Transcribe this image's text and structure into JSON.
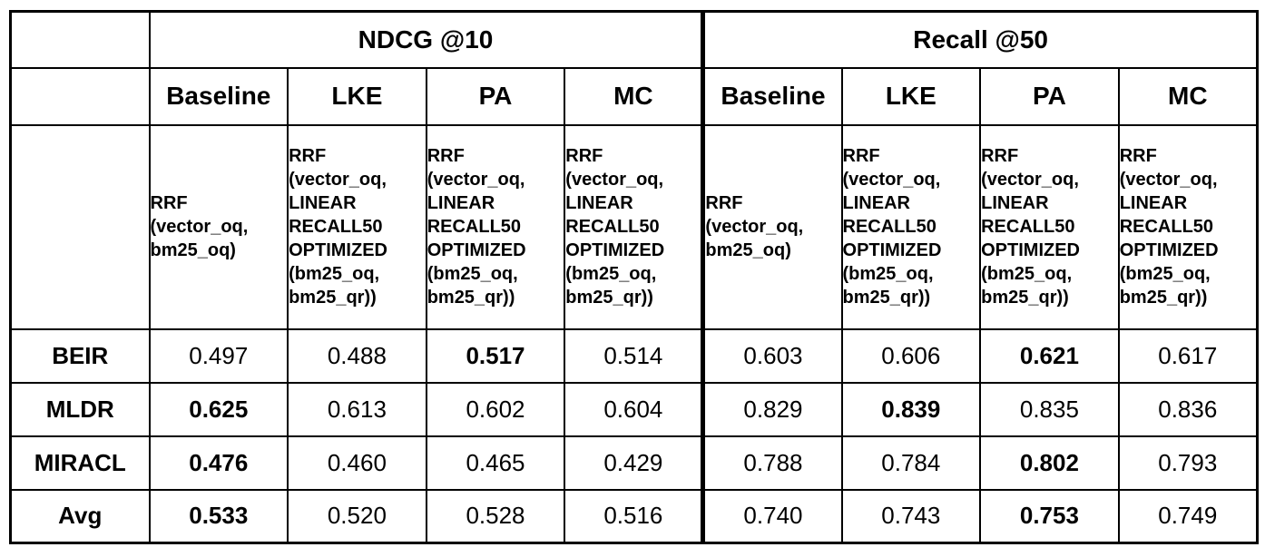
{
  "chart_data": {
    "type": "table",
    "title": "",
    "column_groups": [
      {
        "label": "NDCG @10",
        "span": 4
      },
      {
        "label": "Recall @50",
        "span": 4
      }
    ],
    "columns": [
      "Baseline",
      "LKE",
      "PA",
      "MC",
      "Baseline",
      "LKE",
      "PA",
      "MC"
    ],
    "column_descriptions": [
      "RRF (vector_oq, bm25_oq)",
      "RRF (vector_oq, LINEAR RECALL50 OPTIMIZED (bm25_oq, bm25_qr))",
      "RRF (vector_oq, LINEAR RECALL50 OPTIMIZED (bm25_oq, bm25_qr))",
      "RRF (vector_oq, LINEAR RECALL50 OPTIMIZED (bm25_oq, bm25_qr))",
      "RRF (vector_oq, bm25_oq)",
      "RRF (vector_oq, LINEAR RECALL50 OPTIMIZED (bm25_oq, bm25_qr))",
      "RRF (vector_oq, LINEAR RECALL50 OPTIMIZED (bm25_oq, bm25_qr))",
      "RRF (vector_oq, LINEAR RECALL50 OPTIMIZED (bm25_oq, bm25_qr))"
    ],
    "rows": [
      {
        "label": "BEIR",
        "cells": [
          {
            "value": "0.497",
            "best": false
          },
          {
            "value": "0.488",
            "best": false
          },
          {
            "value": "0.517",
            "best": true
          },
          {
            "value": "0.514",
            "best": false
          },
          {
            "value": "0.603",
            "best": false
          },
          {
            "value": "0.606",
            "best": false
          },
          {
            "value": "0.621",
            "best": true
          },
          {
            "value": "0.617",
            "best": false
          }
        ]
      },
      {
        "label": "MLDR",
        "cells": [
          {
            "value": "0.625",
            "best": true
          },
          {
            "value": "0.613",
            "best": false
          },
          {
            "value": "0.602",
            "best": false
          },
          {
            "value": "0.604",
            "best": false
          },
          {
            "value": "0.829",
            "best": false
          },
          {
            "value": "0.839",
            "best": true
          },
          {
            "value": "0.835",
            "best": false
          },
          {
            "value": "0.836",
            "best": false
          }
        ]
      },
      {
        "label": "MIRACL",
        "cells": [
          {
            "value": "0.476",
            "best": true
          },
          {
            "value": "0.460",
            "best": false
          },
          {
            "value": "0.465",
            "best": false
          },
          {
            "value": "0.429",
            "best": false
          },
          {
            "value": "0.788",
            "best": false
          },
          {
            "value": "0.784",
            "best": false
          },
          {
            "value": "0.802",
            "best": true
          },
          {
            "value": "0.793",
            "best": false
          }
        ]
      },
      {
        "label": "Avg",
        "cells": [
          {
            "value": "0.533",
            "best": true
          },
          {
            "value": "0.520",
            "best": false
          },
          {
            "value": "0.528",
            "best": false
          },
          {
            "value": "0.516",
            "best": false
          },
          {
            "value": "0.740",
            "best": false
          },
          {
            "value": "0.743",
            "best": false
          },
          {
            "value": "0.753",
            "best": true
          },
          {
            "value": "0.749",
            "best": false
          }
        ]
      }
    ]
  }
}
